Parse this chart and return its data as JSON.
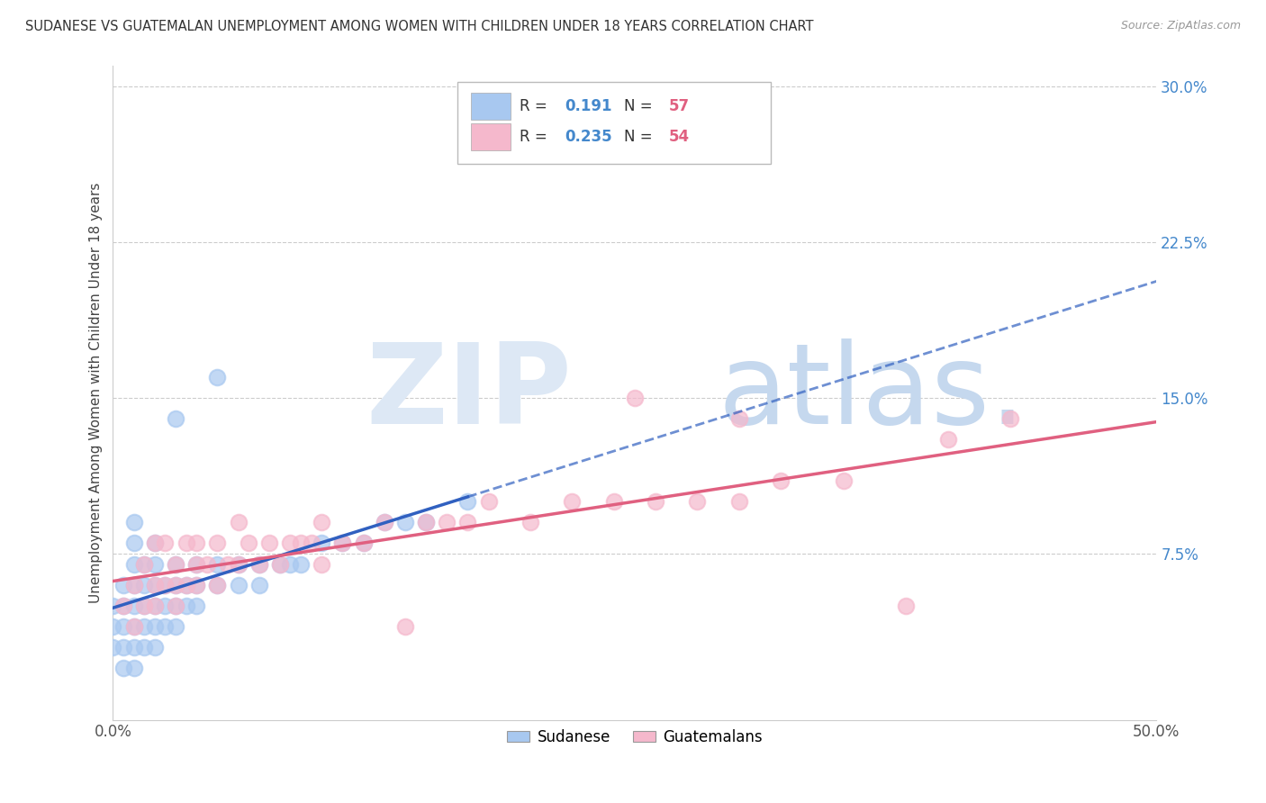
{
  "title": "SUDANESE VS GUATEMALAN UNEMPLOYMENT AMONG WOMEN WITH CHILDREN UNDER 18 YEARS CORRELATION CHART",
  "source": "Source: ZipAtlas.com",
  "ylabel": "Unemployment Among Women with Children Under 18 years",
  "xlim": [
    0.0,
    0.5
  ],
  "ylim": [
    -0.005,
    0.31
  ],
  "xticks": [
    0.0,
    0.5
  ],
  "xticklabels": [
    "0.0%",
    "50.0%"
  ],
  "yticks": [
    0.075,
    0.15,
    0.225,
    0.3
  ],
  "yticklabels": [
    "7.5%",
    "15.0%",
    "22.5%",
    "30.0%"
  ],
  "sudanese_R": 0.191,
  "sudanese_N": 57,
  "guatemalan_R": 0.235,
  "guatemalan_N": 54,
  "sudanese_color": "#a8c8f0",
  "guatemalan_color": "#f5b8cc",
  "sudanese_line_color": "#3060c0",
  "guatemalan_line_color": "#e06080",
  "ytick_color": "#4488cc",
  "sudanese_x": [
    0.0,
    0.0,
    0.0,
    0.005,
    0.005,
    0.005,
    0.005,
    0.005,
    0.01,
    0.01,
    0.01,
    0.01,
    0.01,
    0.01,
    0.01,
    0.01,
    0.015,
    0.015,
    0.015,
    0.015,
    0.015,
    0.02,
    0.02,
    0.02,
    0.02,
    0.02,
    0.02,
    0.025,
    0.025,
    0.025,
    0.03,
    0.03,
    0.03,
    0.03,
    0.035,
    0.035,
    0.04,
    0.04,
    0.04,
    0.05,
    0.05,
    0.06,
    0.06,
    0.07,
    0.07,
    0.08,
    0.085,
    0.09,
    0.1,
    0.11,
    0.12,
    0.13,
    0.14,
    0.15,
    0.17,
    0.05,
    0.03
  ],
  "sudanese_y": [
    0.03,
    0.04,
    0.05,
    0.02,
    0.03,
    0.04,
    0.05,
    0.06,
    0.02,
    0.03,
    0.04,
    0.05,
    0.06,
    0.07,
    0.08,
    0.09,
    0.03,
    0.04,
    0.05,
    0.06,
    0.07,
    0.03,
    0.04,
    0.05,
    0.06,
    0.07,
    0.08,
    0.04,
    0.05,
    0.06,
    0.04,
    0.05,
    0.06,
    0.07,
    0.05,
    0.06,
    0.05,
    0.06,
    0.07,
    0.06,
    0.07,
    0.06,
    0.07,
    0.06,
    0.07,
    0.07,
    0.07,
    0.07,
    0.08,
    0.08,
    0.08,
    0.09,
    0.09,
    0.09,
    0.1,
    0.16,
    0.14
  ],
  "guatemalan_x": [
    0.005,
    0.01,
    0.01,
    0.015,
    0.015,
    0.02,
    0.02,
    0.02,
    0.025,
    0.025,
    0.03,
    0.03,
    0.03,
    0.035,
    0.035,
    0.04,
    0.04,
    0.04,
    0.045,
    0.05,
    0.05,
    0.055,
    0.06,
    0.06,
    0.065,
    0.07,
    0.075,
    0.08,
    0.085,
    0.09,
    0.095,
    0.1,
    0.1,
    0.11,
    0.12,
    0.13,
    0.14,
    0.15,
    0.16,
    0.17,
    0.18,
    0.2,
    0.22,
    0.24,
    0.26,
    0.28,
    0.3,
    0.32,
    0.35,
    0.38,
    0.4,
    0.43,
    0.25,
    0.3
  ],
  "guatemalan_y": [
    0.05,
    0.04,
    0.06,
    0.05,
    0.07,
    0.05,
    0.06,
    0.08,
    0.06,
    0.08,
    0.05,
    0.06,
    0.07,
    0.06,
    0.08,
    0.06,
    0.07,
    0.08,
    0.07,
    0.06,
    0.08,
    0.07,
    0.07,
    0.09,
    0.08,
    0.07,
    0.08,
    0.07,
    0.08,
    0.08,
    0.08,
    0.07,
    0.09,
    0.08,
    0.08,
    0.09,
    0.04,
    0.09,
    0.09,
    0.09,
    0.1,
    0.09,
    0.1,
    0.1,
    0.1,
    0.1,
    0.1,
    0.11,
    0.11,
    0.05,
    0.13,
    0.14,
    0.15,
    0.14
  ]
}
